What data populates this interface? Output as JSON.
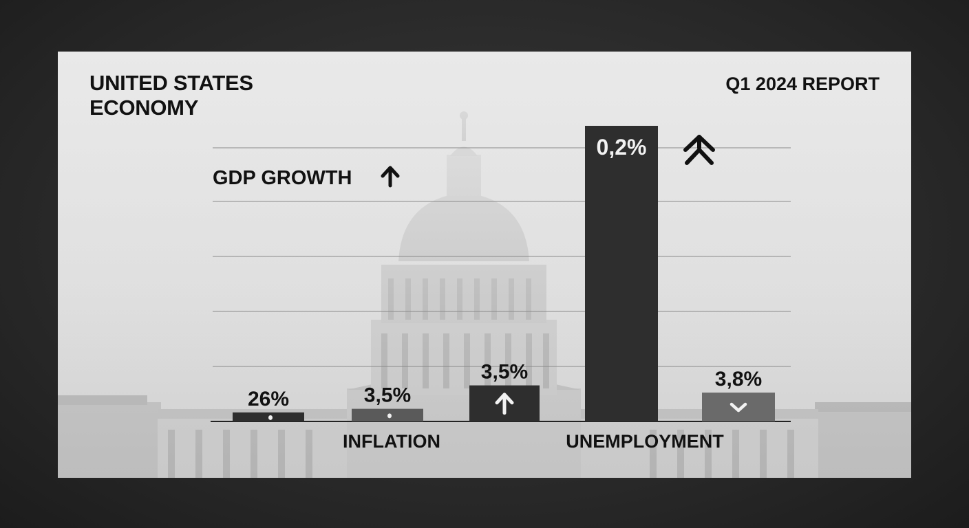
{
  "header": {
    "title_line1": "UNITED STATES",
    "title_line2": "ECONOMY",
    "report": "Q1 2024 REPORT"
  },
  "chart_data": {
    "type": "bar",
    "title": "UNITED STATES ECONOMY",
    "subtitle": "Q1 2024 REPORT",
    "series_label": "GDP GROWTH",
    "category_labels": [
      "INFLATION",
      "UNEMPLOYMENT"
    ],
    "bars": [
      {
        "label": "26%",
        "marker": "dot",
        "color": "#2e2e2e"
      },
      {
        "label": "3,5%",
        "marker": "dot",
        "color": "#5a5a5a"
      },
      {
        "label": "3,5%",
        "marker": "arrow-up",
        "color": "#2e2e2e"
      },
      {
        "label": "0,2%",
        "marker": "none",
        "color": "#2e2e2e"
      },
      {
        "label": "3,8%",
        "marker": "chevron-down",
        "color": "#6a6a6a"
      }
    ],
    "values": [
      0.25,
      0.35,
      1.0,
      8.2,
      0.8
    ],
    "ylim": [
      0,
      8.2
    ],
    "grid": true,
    "legend": "none"
  },
  "colors": {
    "background": "#262626",
    "panel": "#e2e2e2",
    "text": "#111111",
    "bar_dark": "#2e2e2e",
    "bar_mid": "#5a5a5a",
    "bar_light": "#6a6a6a"
  }
}
